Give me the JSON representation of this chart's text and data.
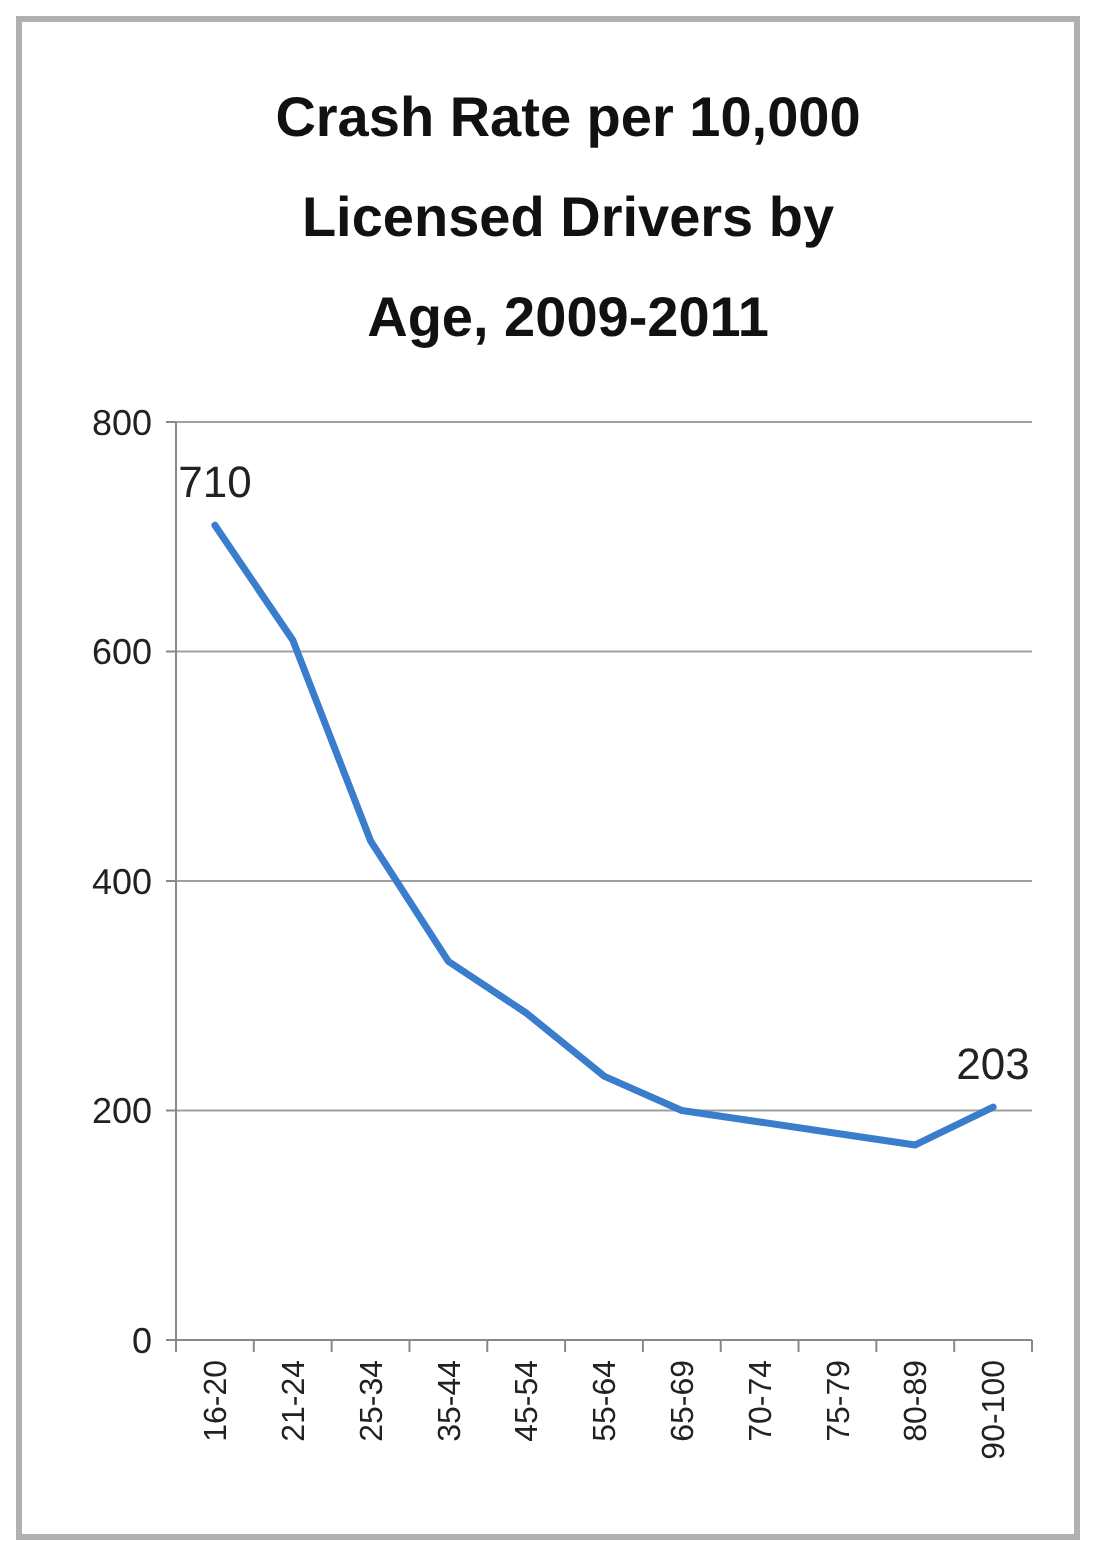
{
  "chart_data": {
    "type": "line",
    "title": "Crash Rate per 10,000 Licensed Drivers by Age, 2009-2011",
    "categories": [
      "16-20",
      "21-24",
      "25-34",
      "35-44",
      "45-54",
      "55-64",
      "65-69",
      "70-74",
      "75-79",
      "80-89",
      "90-100"
    ],
    "series": [
      {
        "color": "#3a7dcc",
        "values": [
          710,
          610,
          435,
          330,
          285,
          230,
          200,
          190,
          180,
          170,
          203
        ],
        "value_labels": [
          "710",
          null,
          null,
          null,
          null,
          null,
          null,
          null,
          null,
          null,
          "203"
        ]
      }
    ],
    "ylim": [
      0,
      800
    ],
    "yticks": [
      0,
      200,
      400,
      600,
      800
    ],
    "grid": "y",
    "marker": "none",
    "line_style": "solid"
  }
}
